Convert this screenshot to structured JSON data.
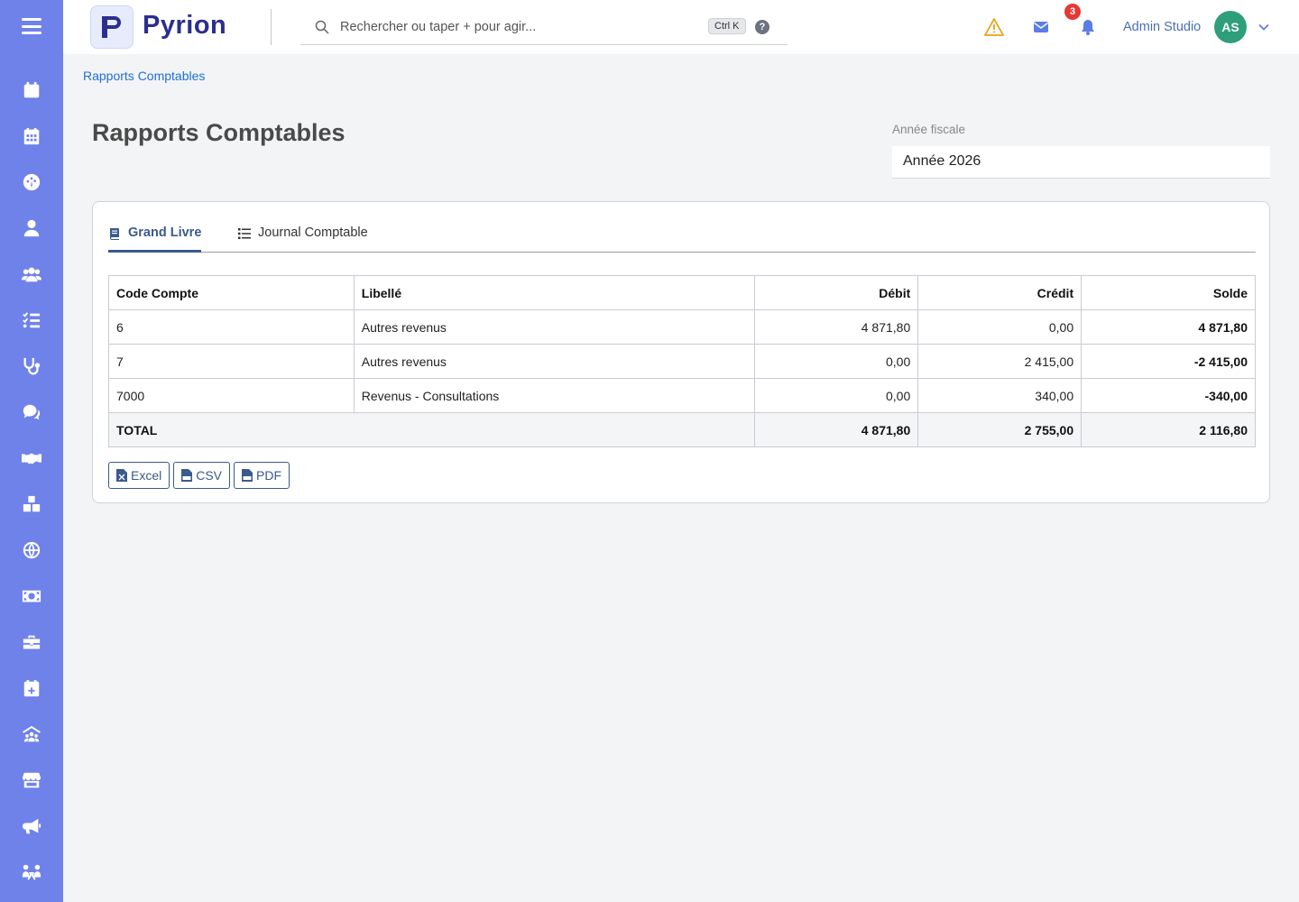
{
  "app": {
    "name": "Pyrion"
  },
  "colors": {
    "sidebar": "#6f82ea",
    "accent": "#3a5a8c",
    "link": "#1e6fd9",
    "avatar": "#2e9f7a",
    "badge": "#e53935",
    "warning": "#e8a317"
  },
  "sidebar": {
    "menu_icon": "hamburger-icon",
    "items": [
      {
        "icon": "calendar-icon"
      },
      {
        "icon": "calendar-grid-icon"
      },
      {
        "icon": "dashboard-gauge-icon"
      },
      {
        "icon": "user-icon"
      },
      {
        "icon": "users-icon"
      },
      {
        "icon": "task-list-icon"
      },
      {
        "icon": "stethoscope-icon"
      },
      {
        "icon": "chat-icon"
      },
      {
        "icon": "handshake-icon"
      },
      {
        "icon": "boxes-icon"
      },
      {
        "icon": "globe-icon"
      },
      {
        "icon": "money-icon"
      },
      {
        "icon": "briefcase-icon"
      },
      {
        "icon": "calendar-plus-icon"
      },
      {
        "icon": "group-roof-icon"
      },
      {
        "icon": "store-icon"
      },
      {
        "icon": "megaphone-icon"
      },
      {
        "icon": "people-network-icon"
      }
    ]
  },
  "header": {
    "search": {
      "placeholder": "Rechercher ou taper + pour agir...",
      "value": "",
      "shortcut": "Ctrl K",
      "help": "?"
    },
    "alerts_count": "3",
    "user_name": "Admin Studio",
    "user_initials": "AS"
  },
  "breadcrumb": "Rapports Comptables",
  "page_title": "Rapports Comptables",
  "fiscal_year": {
    "label": "Année fiscale",
    "value": "Année 2026"
  },
  "tabs": [
    {
      "label": "Grand Livre",
      "icon": "book-icon",
      "active": true
    },
    {
      "label": "Journal Comptable",
      "icon": "list-icon",
      "active": false
    }
  ],
  "ledger": {
    "headers": {
      "code": "Code Compte",
      "label": "Libellé",
      "debit": "Débit",
      "credit": "Crédit",
      "balance": "Solde"
    },
    "rows": [
      {
        "code": "6",
        "label": "Autres revenus",
        "debit": "4 871,80",
        "credit": "0,00",
        "balance": "4 871,80"
      },
      {
        "code": "7",
        "label": "Autres revenus",
        "debit": "0,00",
        "credit": "2 415,00",
        "balance": "-2 415,00"
      },
      {
        "code": "7000",
        "label": "Revenus - Consultations",
        "debit": "0,00",
        "credit": "340,00",
        "balance": "-340,00"
      }
    ],
    "total": {
      "label": "TOTAL",
      "debit": "4 871,80",
      "credit": "2 755,00",
      "balance": "2 116,80"
    }
  },
  "exports": {
    "excel": "Excel",
    "csv": "CSV",
    "pdf": "PDF"
  }
}
